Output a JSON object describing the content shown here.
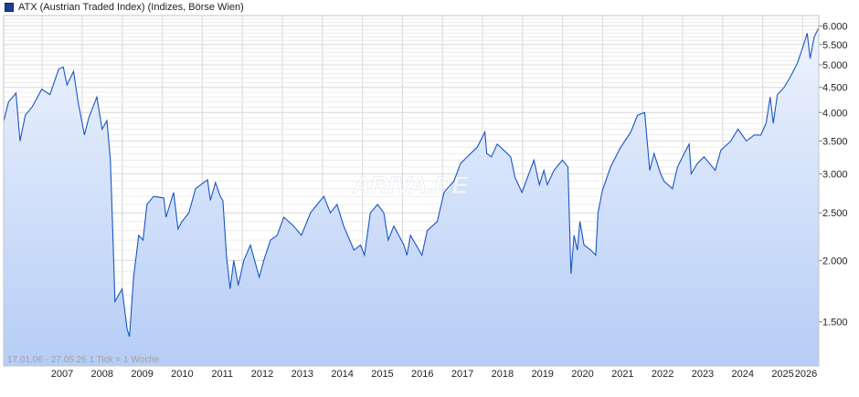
{
  "legend": {
    "label": "ATX (Austrian Traded Index) (Indizes, Börse Wien)",
    "color": "#1e3f91"
  },
  "footnote": "17.01.06 - 27.05.26    1 Tick = 1 Woche",
  "watermark": "ARIVA.DE",
  "colors": {
    "line": "#1a55c4",
    "fill_top": "#eef3fd",
    "fill_bottom": "#b6cdf6",
    "grid": "#dcdcdc"
  },
  "chart_data": {
    "type": "area",
    "title": "ATX (Austrian Traded Index) (Indizes, Börse Wien)",
    "xlabel": "",
    "ylabel": "",
    "y_scale": "log",
    "grid": true,
    "date_range": "17.01.06 - 27.05.26",
    "xlim": [
      2006.04,
      2026.4
    ],
    "ylim": [
      1220,
      6300
    ],
    "x_ticks": [
      {
        "x": 2007,
        "label": "2007"
      },
      {
        "x": 2008,
        "label": "2008"
      },
      {
        "x": 2009,
        "label": "2009"
      },
      {
        "x": 2010,
        "label": "2010"
      },
      {
        "x": 2011,
        "label": "2011"
      },
      {
        "x": 2012,
        "label": "2012"
      },
      {
        "x": 2013,
        "label": "2013"
      },
      {
        "x": 2014,
        "label": "2014"
      },
      {
        "x": 2015,
        "label": "2015"
      },
      {
        "x": 2016,
        "label": "2016"
      },
      {
        "x": 2017,
        "label": "2017"
      },
      {
        "x": 2018,
        "label": "2018"
      },
      {
        "x": 2019,
        "label": "2019"
      },
      {
        "x": 2020,
        "label": "2020"
      },
      {
        "x": 2021,
        "label": "2021"
      },
      {
        "x": 2022,
        "label": "2022"
      },
      {
        "x": 2023,
        "label": "2023"
      },
      {
        "x": 2024,
        "label": "2024"
      },
      {
        "x": 2025,
        "label": "2025"
      },
      {
        "x": 2026,
        "label": "2026"
      }
    ],
    "y_ticks": [
      {
        "y": 1500,
        "label": "1.500"
      },
      {
        "y": 2000,
        "label": "2.000"
      },
      {
        "y": 2500,
        "label": "2.500"
      },
      {
        "y": 3000,
        "label": "3.000"
      },
      {
        "y": 3500,
        "label": "3.500"
      },
      {
        "y": 4000,
        "label": "4.000"
      },
      {
        "y": 4500,
        "label": "4.500"
      },
      {
        "y": 5000,
        "label": "5.000"
      },
      {
        "y": 5500,
        "label": "5.500"
      },
      {
        "y": 6000,
        "label": "6.000"
      }
    ],
    "series": [
      {
        "points": [
          [
            "2006-01-17",
            3850
          ],
          [
            "2006-03-01",
            4200
          ],
          [
            "2006-05-08",
            4380
          ],
          [
            "2006-06-14",
            3500
          ],
          [
            "2006-08-01",
            3950
          ],
          [
            "2006-10-01",
            4100
          ],
          [
            "2006-12-29",
            4460
          ],
          [
            "2007-03-14",
            4350
          ],
          [
            "2007-06-01",
            4900
          ],
          [
            "2007-07-13",
            4950
          ],
          [
            "2007-08-16",
            4550
          ],
          [
            "2007-10-15",
            4850
          ],
          [
            "2007-11-26",
            4200
          ],
          [
            "2008-01-22",
            3600
          ],
          [
            "2008-03-01",
            3900
          ],
          [
            "2008-05-15",
            4300
          ],
          [
            "2008-07-01",
            3700
          ],
          [
            "2008-08-15",
            3850
          ],
          [
            "2008-09-15",
            3200
          ],
          [
            "2008-10-10",
            2200
          ],
          [
            "2008-10-27",
            1650
          ],
          [
            "2008-12-31",
            1750
          ],
          [
            "2009-02-15",
            1450
          ],
          [
            "2009-03-09",
            1400
          ],
          [
            "2009-04-15",
            1850
          ],
          [
            "2009-06-01",
            2250
          ],
          [
            "2009-07-10",
            2200
          ],
          [
            "2009-08-15",
            2600
          ],
          [
            "2009-10-15",
            2700
          ],
          [
            "2010-01-15",
            2680
          ],
          [
            "2010-02-05",
            2450
          ],
          [
            "2010-04-15",
            2750
          ],
          [
            "2010-05-25",
            2320
          ],
          [
            "2010-07-01",
            2400
          ],
          [
            "2010-09-01",
            2500
          ],
          [
            "2010-11-01",
            2800
          ],
          [
            "2011-02-18",
            2920
          ],
          [
            "2011-03-16",
            2650
          ],
          [
            "2011-05-02",
            2880
          ],
          [
            "2011-06-15",
            2700
          ],
          [
            "2011-07-08",
            2650
          ],
          [
            "2011-08-10",
            2050
          ],
          [
            "2011-09-12",
            1750
          ],
          [
            "2011-10-15",
            2000
          ],
          [
            "2011-11-25",
            1780
          ],
          [
            "2012-01-15",
            2000
          ],
          [
            "2012-03-15",
            2150
          ],
          [
            "2012-06-04",
            1850
          ],
          [
            "2012-07-15",
            2000
          ],
          [
            "2012-09-15",
            2200
          ],
          [
            "2012-11-15",
            2250
          ],
          [
            "2013-01-15",
            2450
          ],
          [
            "2013-04-15",
            2350
          ],
          [
            "2013-06-24",
            2250
          ],
          [
            "2013-09-15",
            2500
          ],
          [
            "2013-11-15",
            2600
          ],
          [
            "2014-01-15",
            2700
          ],
          [
            "2014-03-15",
            2500
          ],
          [
            "2014-05-15",
            2600
          ],
          [
            "2014-07-15",
            2350
          ],
          [
            "2014-10-16",
            2100
          ],
          [
            "2014-12-15",
            2150
          ],
          [
            "2015-01-20",
            2050
          ],
          [
            "2015-03-15",
            2500
          ],
          [
            "2015-05-20",
            2600
          ],
          [
            "2015-07-15",
            2500
          ],
          [
            "2015-08-24",
            2200
          ],
          [
            "2015-10-15",
            2350
          ],
          [
            "2016-01-15",
            2150
          ],
          [
            "2016-02-11",
            2050
          ],
          [
            "2016-03-15",
            2250
          ],
          [
            "2016-06-27",
            2050
          ],
          [
            "2016-08-15",
            2300
          ],
          [
            "2016-11-15",
            2400
          ],
          [
            "2017-01-15",
            2750
          ],
          [
            "2017-04-15",
            2900
          ],
          [
            "2017-06-15",
            3150
          ],
          [
            "2017-09-15",
            3300
          ],
          [
            "2017-11-15",
            3400
          ],
          [
            "2018-01-23",
            3650
          ],
          [
            "2018-02-09",
            3300
          ],
          [
            "2018-03-23",
            3250
          ],
          [
            "2018-05-15",
            3450
          ],
          [
            "2018-07-15",
            3350
          ],
          [
            "2018-09-15",
            3250
          ],
          [
            "2018-10-25",
            2950
          ],
          [
            "2018-12-27",
            2750
          ],
          [
            "2019-02-15",
            2950
          ],
          [
            "2019-04-15",
            3200
          ],
          [
            "2019-06-03",
            2850
          ],
          [
            "2019-07-15",
            3050
          ],
          [
            "2019-08-15",
            2850
          ],
          [
            "2019-10-15",
            3050
          ],
          [
            "2019-12-31",
            3200
          ],
          [
            "2020-02-19",
            3100
          ],
          [
            "2020-03-18",
            1880
          ],
          [
            "2020-04-15",
            2250
          ],
          [
            "2020-05-15",
            2100
          ],
          [
            "2020-06-08",
            2400
          ],
          [
            "2020-07-15",
            2150
          ],
          [
            "2020-09-15",
            2100
          ],
          [
            "2020-10-30",
            2050
          ],
          [
            "2020-11-20",
            2500
          ],
          [
            "2020-12-31",
            2780
          ],
          [
            "2021-03-15",
            3100
          ],
          [
            "2021-06-15",
            3400
          ],
          [
            "2021-09-15",
            3650
          ],
          [
            "2021-11-15",
            3950
          ],
          [
            "2022-01-20",
            4000
          ],
          [
            "2022-03-07",
            3050
          ],
          [
            "2022-04-15",
            3300
          ],
          [
            "2022-06-15",
            3000
          ],
          [
            "2022-07-15",
            2900
          ],
          [
            "2022-09-29",
            2800
          ],
          [
            "2022-11-15",
            3100
          ],
          [
            "2023-01-15",
            3300
          ],
          [
            "2023-03-01",
            3450
          ],
          [
            "2023-03-20",
            3000
          ],
          [
            "2023-05-15",
            3150
          ],
          [
            "2023-07-15",
            3250
          ],
          [
            "2023-10-25",
            3050
          ],
          [
            "2023-12-15",
            3350
          ],
          [
            "2024-03-15",
            3500
          ],
          [
            "2024-05-20",
            3700
          ],
          [
            "2024-08-05",
            3500
          ],
          [
            "2024-10-15",
            3600
          ],
          [
            "2024-12-15",
            3600
          ],
          [
            "2025-01-31",
            3800
          ],
          [
            "2025-03-10",
            4300
          ],
          [
            "2025-04-07",
            3800
          ],
          [
            "2025-05-15",
            4350
          ],
          [
            "2025-07-15",
            4500
          ],
          [
            "2025-09-15",
            4750
          ],
          [
            "2025-11-15",
            5050
          ],
          [
            "2026-01-15",
            5550
          ],
          [
            "2026-02-10",
            5800
          ],
          [
            "2026-03-09",
            5150
          ],
          [
            "2026-04-15",
            5700
          ],
          [
            "2026-05-27",
            5950
          ]
        ]
      }
    ]
  }
}
